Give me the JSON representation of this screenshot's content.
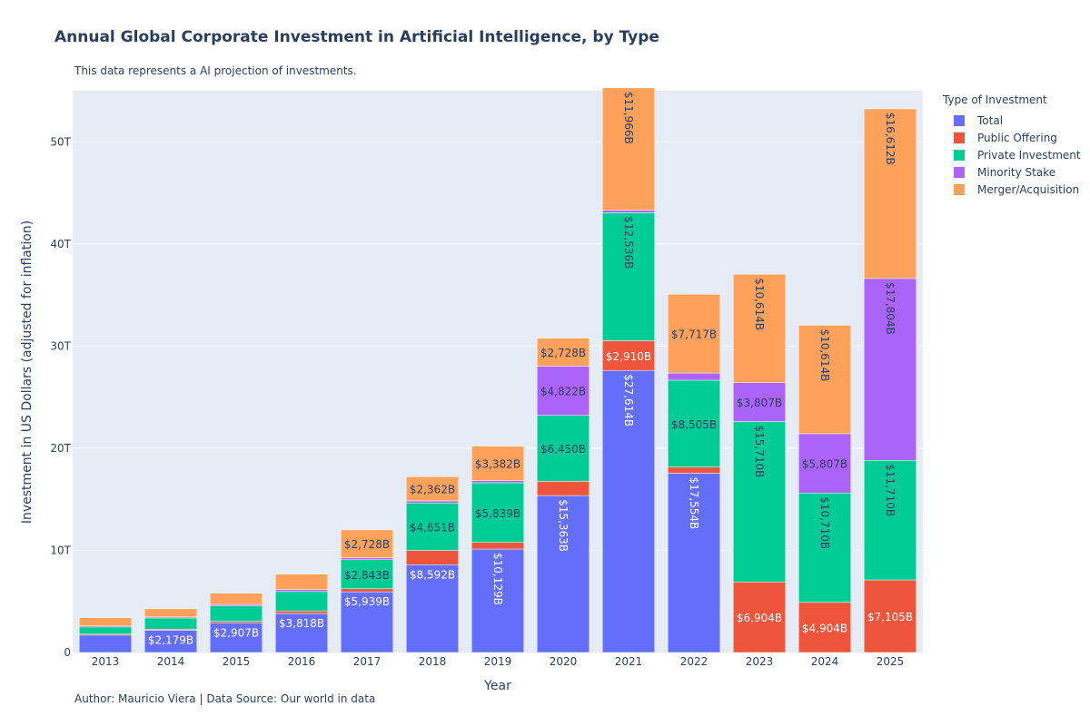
{
  "chart_data": {
    "type": "bar",
    "title": "Annual Global Corporate Investment in Artificial Intelligence, by Type",
    "subtitle": "This data represents a AI projection of investments.",
    "footer": "Author: Mauricio Viera | Data Source: Our world in data",
    "xlabel": "Year",
    "ylabel": "Investment in US Dollars (adjusted for inflation)",
    "ylim": [
      0,
      55
    ],
    "yticks": [
      0,
      10,
      20,
      30,
      40,
      50
    ],
    "ytick_labels": [
      "0",
      "10T",
      "20T",
      "30T",
      "40T",
      "50T"
    ],
    "grid": true,
    "legend_position": "right",
    "legend_title": "Type of Investment",
    "categories": [
      "2013",
      "2014",
      "2015",
      "2016",
      "2017",
      "2018",
      "2019",
      "2020",
      "2021",
      "2022",
      "2023",
      "2024",
      "2025"
    ],
    "series": [
      {
        "name": "Total",
        "color": "#636efa",
        "values": [
          1.7,
          2.179,
          2.907,
          3.818,
          5.939,
          8.592,
          10.129,
          15.363,
          27.614,
          17.554,
          0,
          0,
          0
        ],
        "labels": [
          "",
          "$2,179B",
          "$2,907B",
          "$3,818B",
          "$5,939B",
          "$8,592B",
          "$10,129B",
          "$15,363B",
          "$27,614B",
          "$17,554B",
          "",
          "",
          ""
        ]
      },
      {
        "name": "Public Offering",
        "color": "#ef553b",
        "values": [
          0.1,
          0.1,
          0.15,
          0.25,
          0.3,
          1.4,
          0.65,
          1.4,
          2.91,
          0.6,
          6.904,
          4.904,
          7.105
        ],
        "labels": [
          "",
          "",
          "",
          "",
          "",
          "",
          "",
          "",
          "$2,910B",
          "",
          "$6,904B",
          "$4,904B",
          "$7,105B"
        ]
      },
      {
        "name": "Private Investment",
        "color": "#00cc96",
        "values": [
          0.7,
          1.1,
          1.5,
          1.9,
          2.843,
          4.651,
          5.839,
          6.45,
          12.536,
          8.505,
          15.71,
          10.71,
          11.71
        ],
        "labels": [
          "",
          "",
          "",
          "",
          "$2,843B",
          "$4,651B",
          "$5,839B",
          "$6,450B",
          "$12,536B",
          "$8,505B",
          "$15,710B",
          "$10,710B",
          "$11,710B"
        ]
      },
      {
        "name": "Minority Stake",
        "color": "#ab63fa",
        "values": [
          0.1,
          0.1,
          0.15,
          0.2,
          0.2,
          0.2,
          0.2,
          4.822,
          0.25,
          0.7,
          3.807,
          5.807,
          17.804
        ],
        "labels": [
          "",
          "",
          "",
          "",
          "",
          "",
          "",
          "$4,822B",
          "",
          "",
          "$3,807B",
          "$5,807B",
          "$17,804B"
        ]
      },
      {
        "name": "Merger/Acquisition",
        "color": "#ffa15a",
        "values": [
          0.8,
          0.8,
          1.1,
          1.5,
          2.728,
          2.362,
          3.382,
          2.728,
          11.966,
          7.717,
          10.614,
          10.614,
          16.612
        ],
        "labels": [
          "",
          "",
          "",
          "",
          "$2,728B",
          "$2,362B",
          "$3,382B",
          "$2,728B",
          "$11,966B",
          "$7,717B",
          "$10,614B",
          "$10,614B",
          "$16,612B"
        ]
      }
    ]
  }
}
